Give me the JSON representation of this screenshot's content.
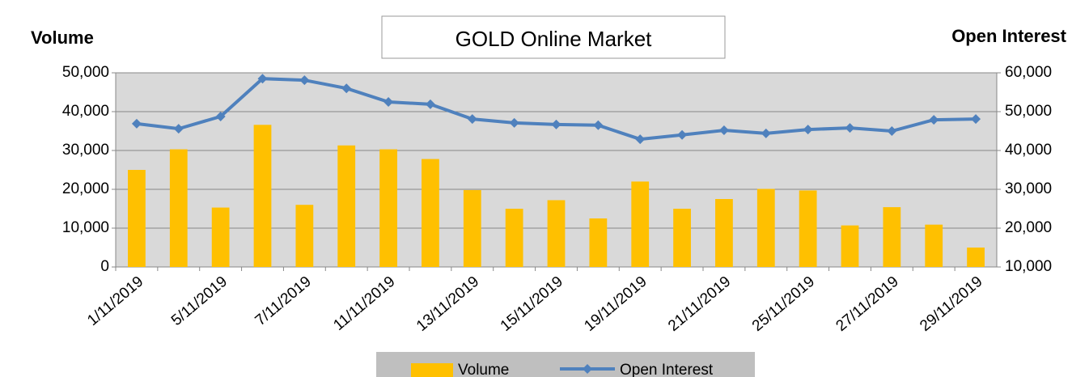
{
  "chart_data": {
    "type": "bar-line",
    "title": "GOLD Online Market",
    "y_label": "Volume",
    "y2_label": "Open Interest",
    "categories": [
      "1/11/2019",
      null,
      "5/11/2019",
      null,
      "7/11/2019",
      null,
      "11/11/2019",
      null,
      "13/11/2019",
      null,
      "15/11/2019",
      null,
      "19/11/2019",
      null,
      "21/11/2019",
      null,
      "25/11/2019",
      null,
      "27/11/2019",
      null,
      "29/11/2019"
    ],
    "series": [
      {
        "name": "Volume",
        "color": "#ffc000",
        "type": "bar",
        "values": [
          25000,
          30300,
          15300,
          36600,
          16000,
          31300,
          30300,
          27800,
          19800,
          15000,
          17200,
          12500,
          22000,
          15000,
          17500,
          20100,
          19700,
          10700,
          15400,
          10900,
          5000
        ]
      },
      {
        "name": "Open Interest",
        "color": "#4f81bd",
        "type": "line",
        "axis": "y2",
        "values": [
          46900,
          45600,
          48750,
          58500,
          58100,
          56000,
          52500,
          51900,
          48100,
          47100,
          46700,
          46500,
          42900,
          44000,
          45200,
          44400,
          45400,
          45800,
          45000,
          47900,
          48100
        ]
      }
    ],
    "ylim": [
      0,
      50000
    ],
    "yticks": [
      0,
      {
        "value": 10000,
        "label": "10,000"
      },
      {
        "value": 20000,
        "label": "20,000"
      },
      {
        "value": 30000,
        "label": "30,000"
      },
      {
        "value": 40000,
        "label": "40,000"
      },
      {
        "value": 50000,
        "label": "50,000"
      }
    ],
    "y2lim": [
      10000,
      60000
    ],
    "y2ticks": [
      {
        "value": 10000,
        "label": "10,000"
      },
      {
        "value": 20000,
        "label": "20,000"
      },
      {
        "value": 30000,
        "label": "30,000"
      },
      {
        "value": 40000,
        "label": "40,000"
      },
      {
        "value": 50000,
        "label": "50,000"
      },
      {
        "value": 60000,
        "label": "60,000"
      }
    ],
    "grid": true,
    "legend": "bottom"
  }
}
